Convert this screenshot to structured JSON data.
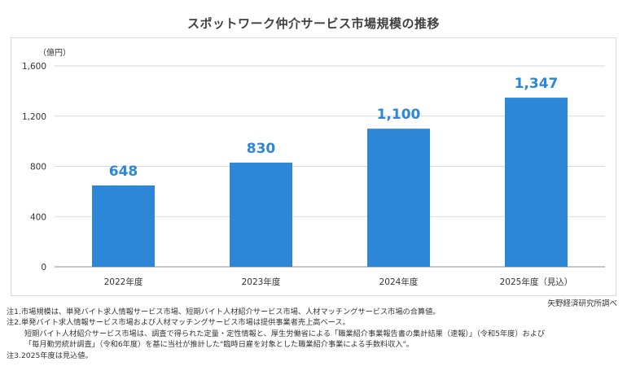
{
  "title": "スポットワーク仲介サービス市場規模の推移",
  "chart_data": {
    "type": "bar",
    "title": "スポットワーク仲介サービス市場規模の推移",
    "ylabel": "（億円）",
    "categories": [
      "2022年度",
      "2023年度",
      "2024年度",
      "2025年度（見込）"
    ],
    "values": [
      648,
      830,
      1100,
      1347
    ],
    "data_labels": [
      "648",
      "830",
      "1,100",
      "1,347"
    ],
    "ylim": [
      0,
      1600
    ],
    "yticks": [
      0,
      400,
      800,
      1200,
      1600
    ],
    "ytick_labels": [
      "0",
      "400",
      "800",
      "1,200",
      "1,600"
    ],
    "grid": true,
    "legend": "none",
    "bar_color": "#2e86d7",
    "label_color": "#2e86d7"
  },
  "source": "矢野経済研究所調べ",
  "notes": [
    "注1.市場規模は、単発バイト求人情報サービス市場、短期バイト人材紹介サービス市場、人材マッチングサービス市場の合算値。",
    "注2.単発バイト求人情報サービス市場および人材マッチングサービス市場は提供事業者売上高ベース。",
    "短期バイト人材紹介サービス市場は、調査で得られた定量・定性情報と、厚生労働省による「職業紹介事業報告書の集計結果（速報）」（令和5年度）および",
    "「毎月勤労統計調査」（令和6年度）を基に当社が推計した\"臨時日雇を対象とした職業紹介事業による手数料収入\"。",
    "注3.2025年度は見込値。"
  ]
}
